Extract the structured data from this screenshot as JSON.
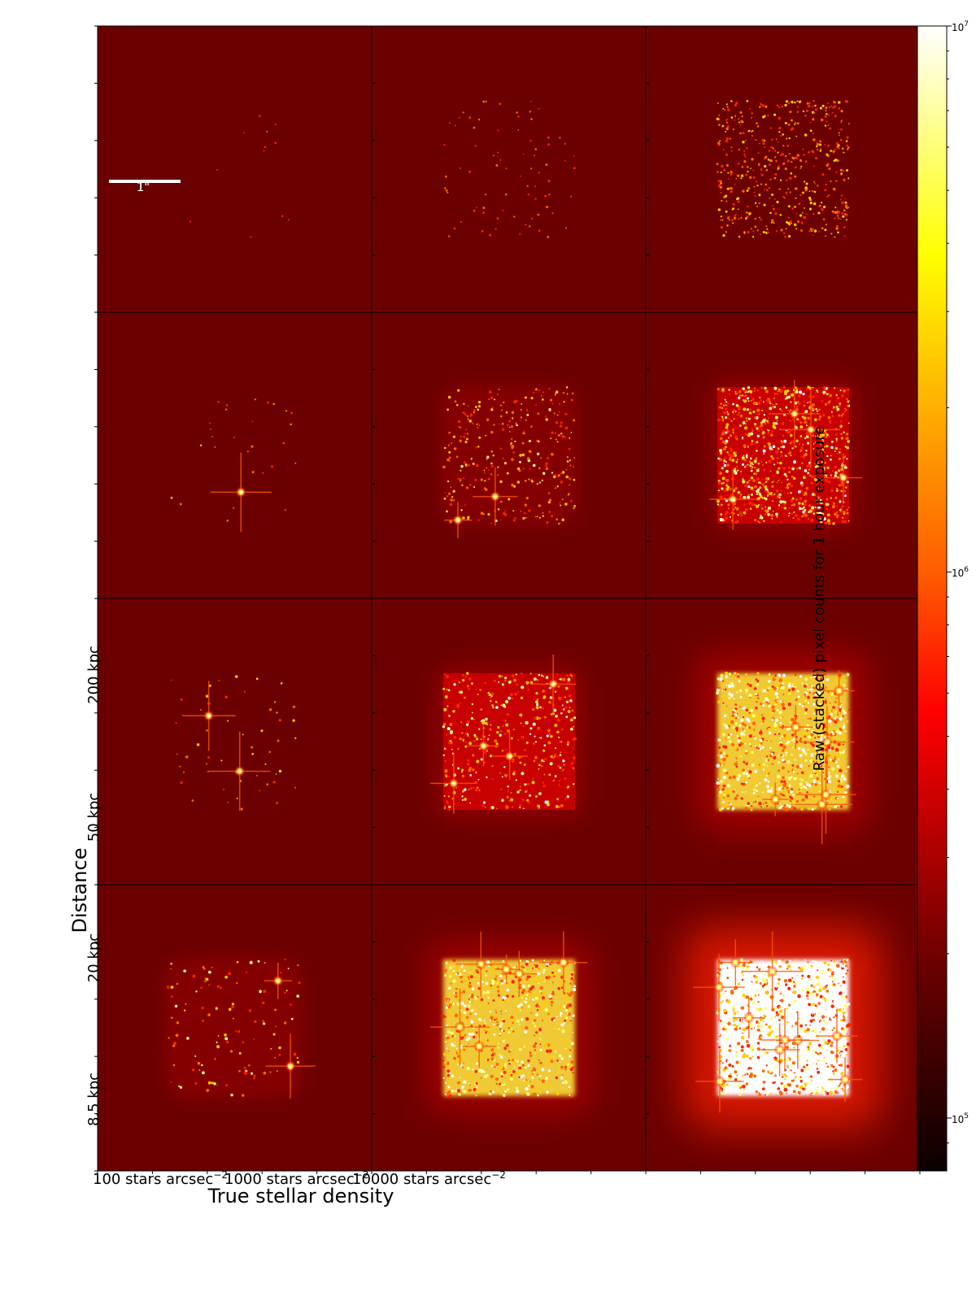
{
  "chart_data": {
    "type": "heatmap",
    "layout": {
      "rows": 4,
      "cols": 3
    },
    "xlabel": "True stellar density",
    "ylabel": "Distance",
    "x_tick_labels": [
      {
        "text": "100 stars arcsec",
        "exp": "−2"
      },
      {
        "text": "1000 stars arcsec",
        "exp": "−2"
      },
      {
        "text": "10000 stars arcsec",
        "exp": "−2"
      }
    ],
    "y_tick_labels": [
      "200 kpc",
      "50 kpc",
      "20 kpc",
      "8.5 kpc"
    ],
    "scale_bar_label": "1\"",
    "colorbar": {
      "label": "Raw (stacked) pixel counts for 1 hour exposure",
      "scale": "log",
      "range": [
        80000,
        10000000
      ],
      "ticks": [
        {
          "base": "10",
          "exp": "7"
        },
        {
          "base": "10",
          "exp": "6"
        },
        {
          "base": "10",
          "exp": "5"
        }
      ],
      "colormap": "hot"
    },
    "panels": [
      {
        "row": 0,
        "col": 0,
        "stars": 12,
        "brightness": 0.35,
        "glow": 0.0,
        "bright_stars": 0
      },
      {
        "row": 0,
        "col": 1,
        "stars": 80,
        "brightness": 0.45,
        "glow": 0.0,
        "bright_stars": 0
      },
      {
        "row": 0,
        "col": 2,
        "stars": 520,
        "brightness": 0.6,
        "glow": 0.0,
        "bright_stars": 0
      },
      {
        "row": 1,
        "col": 0,
        "stars": 28,
        "brightness": 0.5,
        "glow": 0.0,
        "bright_stars": 1
      },
      {
        "row": 1,
        "col": 1,
        "stars": 320,
        "brightness": 0.65,
        "glow": 0.1,
        "bright_stars": 2
      },
      {
        "row": 1,
        "col": 2,
        "stars": 1400,
        "brightness": 0.8,
        "glow": 0.3,
        "bright_stars": 4
      },
      {
        "row": 2,
        "col": 0,
        "stars": 55,
        "brightness": 0.6,
        "glow": 0.0,
        "bright_stars": 2
      },
      {
        "row": 2,
        "col": 1,
        "stars": 420,
        "brightness": 0.8,
        "glow": 0.3,
        "bright_stars": 4
      },
      {
        "row": 2,
        "col": 2,
        "stars": 2000,
        "brightness": 0.95,
        "glow": 0.7,
        "bright_stars": 6
      },
      {
        "row": 3,
        "col": 0,
        "stars": 120,
        "brightness": 0.75,
        "glow": 0.1,
        "bright_stars": 2
      },
      {
        "row": 3,
        "col": 1,
        "stars": 700,
        "brightness": 0.9,
        "glow": 0.6,
        "bright_stars": 6
      },
      {
        "row": 3,
        "col": 2,
        "stars": 2600,
        "brightness": 1.0,
        "glow": 1.0,
        "bright_stars": 10
      }
    ]
  }
}
